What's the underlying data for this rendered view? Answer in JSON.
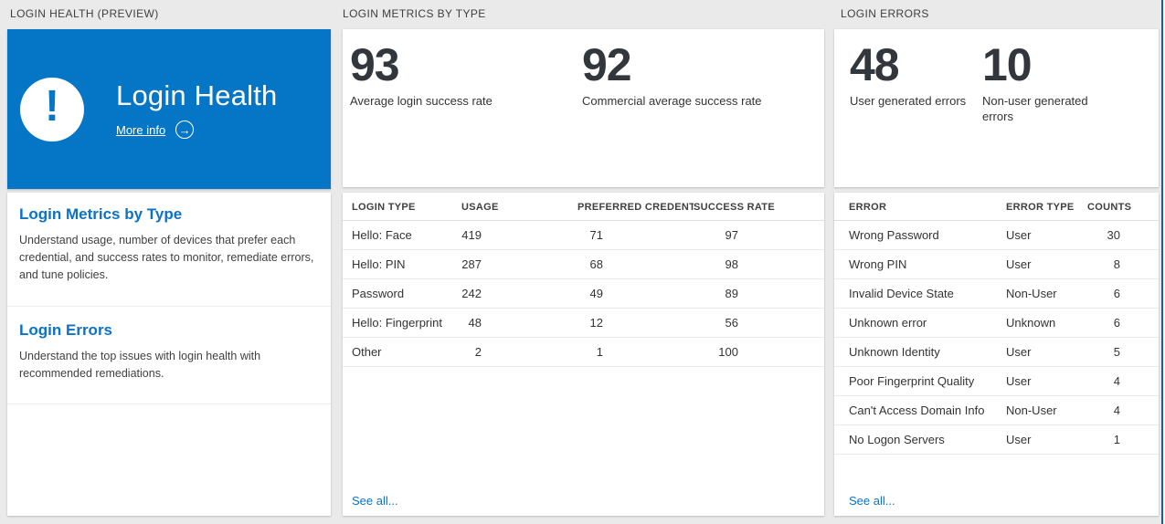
{
  "theme": {
    "page_bg": "#eaeaea",
    "accent_blue": "#0576c5",
    "link_blue": "#0b72c6",
    "dark_text": "#32373d",
    "edge_blue": "#1a6197"
  },
  "icons": {
    "exclamation_glyph": "!",
    "arrow_glyph": "→"
  },
  "health": {
    "header": "LOGIN HEALTH (PREVIEW)",
    "tile": {
      "title": "Login Health",
      "more_info_label": "More info"
    },
    "sections": [
      {
        "title": "Login Metrics by Type",
        "description": "Understand usage, number of devices that prefer each credential, and success rates to monitor, remediate errors, and tune policies."
      },
      {
        "title": "Login Errors",
        "description": "Understand the top issues with login health with recommended remediations."
      }
    ]
  },
  "metrics": {
    "header": "LOGIN METRICS BY TYPE",
    "stats": [
      {
        "value": "93",
        "label": "Average login success rate"
      },
      {
        "value": "92",
        "label": "Commercial average success rate"
      }
    ],
    "table": {
      "columns": [
        "LOGIN TYPE",
        "USAGE",
        "PREFERRED CREDENTIAL",
        "SUCCESS RATE"
      ],
      "rows": [
        [
          "Hello: Face",
          "419",
          "71",
          "97"
        ],
        [
          "Hello: PIN",
          "287",
          "68",
          "98"
        ],
        [
          "Password",
          "242",
          "49",
          "89"
        ],
        [
          "Hello: Fingerprint",
          "48",
          "12",
          "56"
        ],
        [
          "Other",
          "2",
          "1",
          "100"
        ]
      ]
    },
    "see_all_label": "See all..."
  },
  "errors": {
    "header": "LOGIN ERRORS",
    "stats": [
      {
        "value": "48",
        "label": "User generated errors"
      },
      {
        "value": "10",
        "label": "Non-user generated errors"
      }
    ],
    "table": {
      "columns": [
        "ERROR",
        "ERROR TYPE",
        "COUNTS"
      ],
      "rows": [
        [
          "Wrong Password",
          "User",
          "30"
        ],
        [
          "Wrong PIN",
          "User",
          "8"
        ],
        [
          "Invalid Device State",
          "Non-User",
          "6"
        ],
        [
          "Unknown error",
          "Unknown",
          "6"
        ],
        [
          "Unknown Identity",
          "User",
          "5"
        ],
        [
          "Poor Fingerprint Quality",
          "User",
          "4"
        ],
        [
          "Can't Access Domain Info",
          "Non-User",
          "4"
        ],
        [
          "No Logon Servers",
          "User",
          "1"
        ]
      ]
    },
    "see_all_label": "See all..."
  }
}
